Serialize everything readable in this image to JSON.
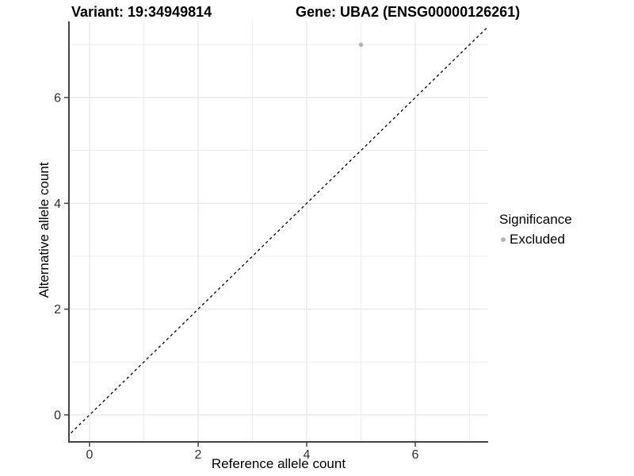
{
  "chart_data": {
    "type": "scatter",
    "title_left": "Variant: 19:34949814",
    "title_right": "Gene: UBA2 (ENSG00000126261)",
    "xlabel": "Reference allele count",
    "ylabel": "Alternative allele count",
    "x_ticks": [
      0,
      2,
      4,
      6
    ],
    "y_ticks": [
      0,
      2,
      4,
      6
    ],
    "x_minor_ticks": [
      1,
      3,
      5,
      7
    ],
    "y_minor_ticks": [
      1,
      3,
      5,
      7
    ],
    "xlim": [
      -0.4,
      7.35
    ],
    "ylim": [
      -0.5,
      7.45
    ],
    "points": [
      {
        "x": 5,
        "y": 7,
        "series": "Excluded"
      }
    ],
    "reference_line": {
      "kind": "identity",
      "style": "dashed",
      "color": "#000000"
    },
    "legend": {
      "title": "Significance",
      "position": "right",
      "items": [
        {
          "label": "Excluded",
          "color": "#b5b5b5"
        }
      ]
    },
    "colors": {
      "point": "#b5b5b5",
      "grid_major": "#e6e6e6",
      "grid_minor": "#eeeeee",
      "axis_line": "#434343",
      "tick_label": "#303030",
      "background": "#ffffff"
    },
    "grid": "major+minor"
  }
}
